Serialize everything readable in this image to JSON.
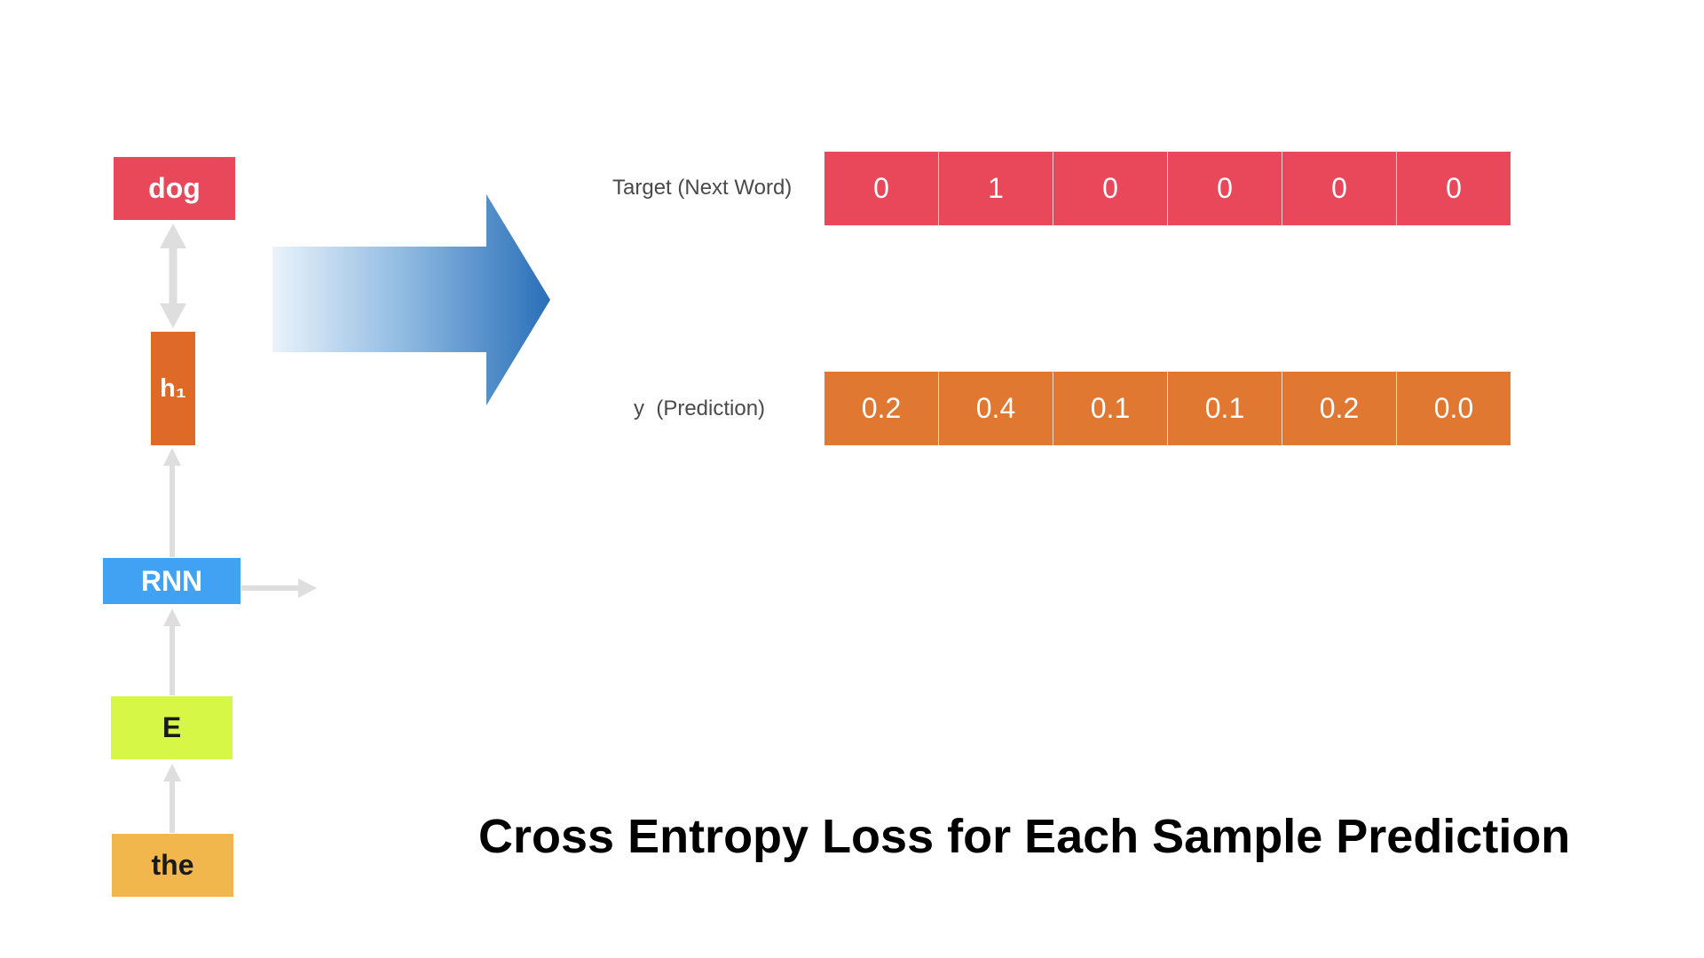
{
  "diagram": {
    "nodes": {
      "output_word": "dog",
      "hidden_state": "h₁",
      "rnn": "RNN",
      "embedding": "E",
      "input_word": "the"
    },
    "colors": {
      "output_word": "#e9485a",
      "hidden_state": "#df6a28",
      "rnn": "#41a2f4",
      "embedding": "#d7f746",
      "input_word": "#f1b74d",
      "connector": "#dedede",
      "big_arrow_start": "#eaf3fb",
      "big_arrow_end": "#2a6fb8"
    },
    "icons": {
      "big_arrow": "right-arrow-icon",
      "connectors": "arrow-icon"
    }
  },
  "target": {
    "label": "Target (Next Word)",
    "values": [
      "0",
      "1",
      "0",
      "0",
      "0",
      "0"
    ],
    "color": "#e9485a"
  },
  "prediction": {
    "label": "y  (Prediction)",
    "values": [
      "0.2",
      "0.4",
      "0.1",
      "0.1",
      "0.2",
      "0.0"
    ],
    "color": "#e17831"
  },
  "title": "Cross Entropy Loss for Each Sample Prediction"
}
